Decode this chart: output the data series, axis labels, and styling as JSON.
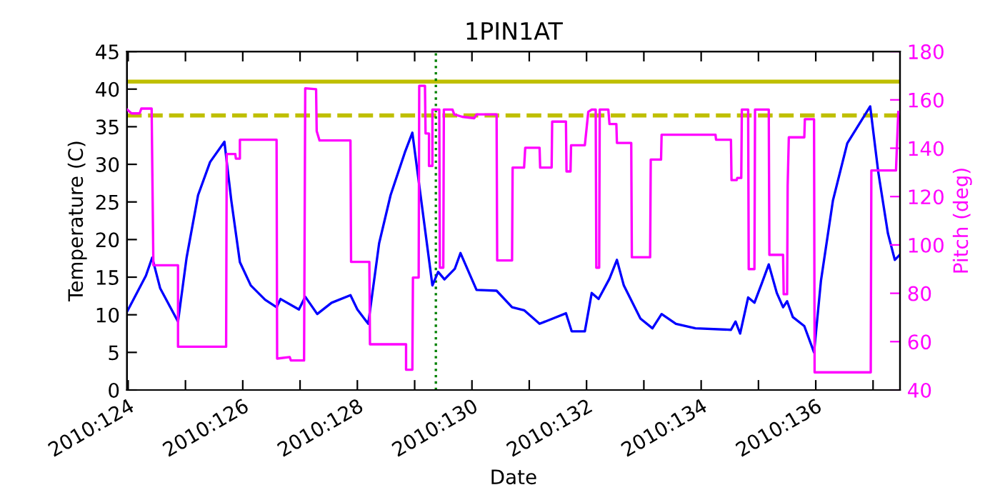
{
  "chart_data": {
    "type": "line",
    "title": "1PIN1AT",
    "xlabel": "Date",
    "ylabel": "Temperature (C)",
    "y2label": "Pitch (deg)",
    "xlim": [
      "2010-05-03T23:31",
      "2010-05-17T11:17"
    ],
    "xticks": [
      {
        "value": "2010-05-04",
        "label": "2010:124"
      },
      {
        "value": "2010-05-05",
        "label": null
      },
      {
        "value": "2010-05-06",
        "label": "2010:126"
      },
      {
        "value": "2010-05-07",
        "label": null
      },
      {
        "value": "2010-05-08",
        "label": "2010:128"
      },
      {
        "value": "2010-05-09",
        "label": null
      },
      {
        "value": "2010-05-10",
        "label": "2010:130"
      },
      {
        "value": "2010-05-11",
        "label": null
      },
      {
        "value": "2010-05-12",
        "label": "2010:132"
      },
      {
        "value": "2010-05-13",
        "label": null
      },
      {
        "value": "2010-05-14",
        "label": "2010:134"
      },
      {
        "value": "2010-05-15",
        "label": null
      },
      {
        "value": "2010-05-16",
        "label": "2010:136"
      },
      {
        "value": "2010-05-17",
        "label": null
      }
    ],
    "ylim": [
      0,
      45
    ],
    "yticks": [
      0,
      5,
      10,
      15,
      20,
      25,
      30,
      35,
      40,
      45
    ],
    "y2lim": [
      40,
      180
    ],
    "y2ticks": [
      40,
      60,
      80,
      100,
      120,
      140,
      160,
      180
    ],
    "grid": false,
    "legend": false,
    "marker": "none",
    "line_style": "solid",
    "series": [
      {
        "color": "#0000ff",
        "axis": "y",
        "x": [
          "2010-05-03T23:31",
          "2010-05-04T07:26",
          "2010-05-04T10:05",
          "2010-05-04T13:26",
          "2010-05-04T20:53",
          "2010-05-05T00:29",
          "2010-05-05T05:17",
          "2010-05-05T10:19",
          "2010-05-05T16:19",
          "2010-05-05T19:12",
          "2010-05-05T22:48",
          "2010-05-06T03:22",
          "2010-05-06T09:22",
          "2010-05-06T14:10",
          "2010-05-06T15:50",
          "2010-05-06T23:31",
          "2010-05-07T02:10",
          "2010-05-07T07:12",
          "2010-05-07T13:12",
          "2010-05-07T21:07",
          "2010-05-08T00:00",
          "2010-05-08T04:34",
          "2010-05-08T09:07",
          "2010-05-08T13:55",
          "2010-05-08T19:55",
          "2010-05-08T23:02",
          "2010-05-09T07:26",
          "2010-05-09T09:50",
          "2010-05-09T12:29",
          "2010-05-09T16:48",
          "2010-05-09T19:12",
          "2010-05-10T01:55",
          "2010-05-10T10:19",
          "2010-05-10T16:48",
          "2010-05-10T21:50",
          "2010-05-11T04:19",
          "2010-05-11T09:50",
          "2010-05-11T15:22",
          "2010-05-11T17:46",
          "2010-05-11T23:17",
          "2010-05-12T02:10",
          "2010-05-12T05:02",
          "2010-05-12T09:36",
          "2010-05-12T12:43",
          "2010-05-12T15:36",
          "2010-05-12T22:34",
          "2010-05-13T03:36",
          "2010-05-13T07:26",
          "2010-05-13T13:26",
          "2010-05-13T21:36",
          "2010-05-14T12:29",
          "2010-05-14T14:24",
          "2010-05-14T16:19",
          "2010-05-14T19:41",
          "2010-05-14T22:19",
          "2010-05-15T01:26",
          "2010-05-15T04:19",
          "2010-05-15T07:41",
          "2010-05-15T10:19",
          "2010-05-15T12:00",
          "2010-05-15T14:24",
          "2010-05-15T19:12",
          "2010-05-15T23:17",
          "2010-05-16T02:10",
          "2010-05-16T07:12",
          "2010-05-16T13:12",
          "2010-05-16T22:48",
          "2010-05-17T02:10",
          "2010-05-17T06:14",
          "2010-05-17T09:07",
          "2010-05-17T11:17"
        ],
        "values": [
          10.4,
          15.2,
          17.6,
          13.5,
          9.1,
          17.6,
          25.9,
          30.3,
          33.0,
          25.2,
          17.0,
          13.9,
          12.0,
          11.0,
          12.1,
          10.7,
          12.4,
          10.1,
          11.6,
          12.6,
          10.7,
          8.8,
          19.5,
          25.9,
          31.6,
          34.2,
          13.9,
          15.7,
          14.7,
          16.1,
          18.2,
          13.3,
          13.2,
          11.0,
          10.6,
          8.8,
          9.5,
          10.2,
          7.8,
          7.8,
          12.9,
          12.1,
          14.8,
          17.3,
          13.9,
          9.5,
          8.2,
          10.1,
          8.8,
          8.2,
          8.0,
          9.1,
          7.5,
          12.3,
          11.6,
          14.2,
          16.7,
          12.9,
          11.0,
          11.8,
          9.7,
          8.5,
          5.0,
          14.5,
          25.2,
          32.8,
          37.7,
          29.0,
          20.8,
          17.3,
          18.0
        ]
      },
      {
        "color": "#ff00ff",
        "axis": "y2",
        "x": [
          "2010-05-03T23:31",
          "2010-05-04T01:26",
          "2010-05-04T04:48",
          "2010-05-04T05:31",
          "2010-05-04T09:50",
          "2010-05-04T10:34",
          "2010-05-04T20:53",
          "2010-05-04T20:53",
          "2010-05-05T17:02",
          "2010-05-05T17:17",
          "2010-05-05T20:53",
          "2010-05-05T21:07",
          "2010-05-05T22:48",
          "2010-05-05T22:48",
          "2010-05-06T14:10",
          "2010-05-06T14:24",
          "2010-05-06T19:41",
          "2010-05-06T20:10",
          "2010-05-07T01:41",
          "2010-05-07T02:10",
          "2010-05-07T06:43",
          "2010-05-07T06:58",
          "2010-05-07T08:10",
          "2010-05-07T21:07",
          "2010-05-07T21:22",
          "2010-05-08T05:02",
          "2010-05-08T05:17",
          "2010-05-08T20:24",
          "2010-05-08T20:24",
          "2010-05-08T23:02",
          "2010-05-08T23:17",
          "2010-05-09T01:41",
          "2010-05-09T01:55",
          "2010-05-09T04:19",
          "2010-05-09T04:34",
          "2010-05-09T06:00",
          "2010-05-09T06:00",
          "2010-05-09T07:26",
          "2010-05-09T07:26",
          "2010-05-09T10:19",
          "2010-05-09T10:34",
          "2010-05-09T12:00",
          "2010-05-09T12:14",
          "2010-05-09T15:50",
          "2010-05-09T16:34",
          "2010-05-09T19:55",
          "2010-05-10T00:58",
          "2010-05-10T01:55",
          "2010-05-10T10:19",
          "2010-05-10T10:34",
          "2010-05-10T16:48",
          "2010-05-10T17:02",
          "2010-05-10T21:50",
          "2010-05-10T22:19",
          "2010-05-11T04:19",
          "2010-05-11T04:34",
          "2010-05-11T09:22",
          "2010-05-11T09:36",
          "2010-05-11T15:22",
          "2010-05-11T15:36",
          "2010-05-11T17:17",
          "2010-05-11T17:31",
          "2010-05-11T23:17",
          "2010-05-12T00:43",
          "2010-05-12T02:10",
          "2010-05-12T03:50",
          "2010-05-12T04:05",
          "2010-05-12T05:17",
          "2010-05-12T05:31",
          "2010-05-12T09:07",
          "2010-05-12T09:36",
          "2010-05-12T12:29",
          "2010-05-12T12:43",
          "2010-05-12T18:43",
          "2010-05-12T18:58",
          "2010-05-13T02:38",
          "2010-05-13T02:53",
          "2010-05-13T07:12",
          "2010-05-13T07:26",
          "2010-05-14T06:00",
          "2010-05-14T06:14",
          "2010-05-14T12:29",
          "2010-05-14T12:43",
          "2010-05-14T14:53",
          "2010-05-14T15:07",
          "2010-05-14T16:48",
          "2010-05-14T17:02",
          "2010-05-14T19:41",
          "2010-05-14T19:55",
          "2010-05-14T22:19",
          "2010-05-14T22:34",
          "2010-05-15T04:19",
          "2010-05-15T04:34",
          "2010-05-15T10:19",
          "2010-05-15T10:34",
          "2010-05-15T12:00",
          "2010-05-15T12:14",
          "2010-05-15T12:43",
          "2010-05-15T13:12",
          "2010-05-15T19:12",
          "2010-05-15T19:26",
          "2010-05-15T23:17",
          "2010-05-15T23:31",
          "2010-05-16T23:02",
          "2010-05-16T23:17",
          "2010-05-17T09:36",
          "2010-05-17T10:34"
        ],
        "values": [
          156.0,
          154.4,
          154.4,
          156.4,
          156.4,
          91.6,
          91.6,
          57.9,
          57.9,
          137.6,
          137.6,
          135.7,
          135.7,
          143.5,
          143.5,
          53.0,
          53.6,
          52.2,
          52.2,
          164.8,
          164.4,
          147.1,
          143.2,
          143.2,
          93.0,
          93.0,
          58.9,
          58.9,
          48.4,
          48.4,
          86.5,
          86.5,
          165.8,
          165.8,
          146.1,
          146.1,
          132.7,
          132.7,
          156.0,
          156.0,
          90.6,
          90.6,
          156.0,
          156.0,
          154.0,
          153.0,
          152.4,
          154.0,
          154.0,
          93.6,
          93.6,
          132.0,
          132.0,
          140.2,
          140.2,
          132.0,
          132.0,
          151.0,
          151.0,
          130.4,
          130.4,
          141.2,
          141.2,
          155.0,
          156.0,
          156.0,
          90.6,
          90.6,
          156.0,
          156.0,
          150.0,
          150.0,
          142.2,
          142.2,
          94.9,
          94.9,
          135.3,
          135.3,
          145.6,
          145.6,
          143.5,
          143.5,
          126.8,
          126.8,
          127.7,
          127.7,
          156.0,
          156.0,
          90.0,
          90.0,
          156.0,
          156.0,
          95.9,
          95.9,
          79.6,
          79.6,
          124.5,
          144.5,
          144.5,
          144.5,
          152.0,
          152.0,
          47.3,
          47.3,
          130.8,
          130.8,
          155.0
        ]
      }
    ],
    "ref_lines": [
      {
        "axis": "y",
        "value": 41,
        "color": "#bfbf00",
        "line_style": "solid"
      },
      {
        "axis": "y",
        "value": 36.5,
        "color": "#bfbf00",
        "line_style": "dashed"
      },
      {
        "axis": "x",
        "value": "2010-05-09T08:53",
        "color": "#008000",
        "line_style": "dotted"
      }
    ]
  }
}
